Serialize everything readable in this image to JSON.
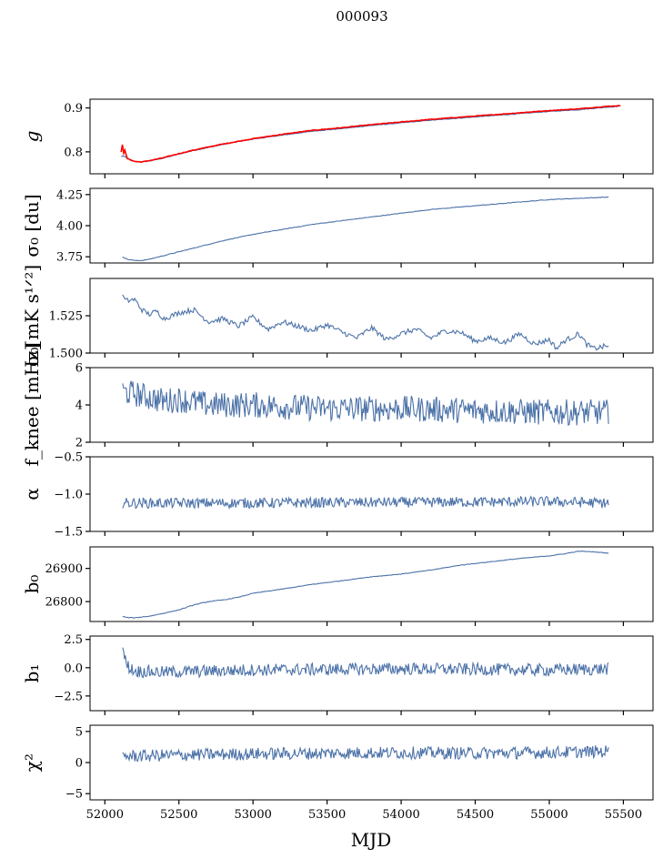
{
  "figure": {
    "title": "000093",
    "xlabel": "MJD"
  },
  "colors": {
    "series_blue": "#4c72a8",
    "series_red": "#ff0000"
  },
  "chart_data": [
    {
      "id": "g",
      "type": "line",
      "ylabel_text": "g",
      "ylabel_italic": true,
      "ylim": [
        0.75,
        0.92
      ],
      "yticks": [
        0.8,
        0.9
      ],
      "ytick_labels": [
        "0.8",
        "0.9"
      ],
      "xlim": [
        51900,
        55700
      ],
      "series": [
        {
          "color": "#4c72a8",
          "x": [
            52110,
            52130,
            52150,
            52200,
            52250,
            52300,
            52400,
            52500,
            52600,
            52700,
            52800,
            52900,
            53000,
            53200,
            53400,
            53600,
            53800,
            54000,
            54200,
            54400,
            54600,
            54800,
            55000,
            55200,
            55400,
            55480
          ],
          "y": [
            0.79,
            0.79,
            0.785,
            0.778,
            0.777,
            0.779,
            0.786,
            0.795,
            0.803,
            0.81,
            0.817,
            0.823,
            0.829,
            0.838,
            0.847,
            0.853,
            0.86,
            0.866,
            0.872,
            0.877,
            0.882,
            0.887,
            0.892,
            0.896,
            0.902,
            0.904
          ]
        },
        {
          "color": "#ff0000",
          "x": [
            52110,
            52120,
            52125,
            52130,
            52150,
            52200,
            52250,
            52300,
            52400,
            52500,
            52600,
            52700,
            52800,
            52900,
            53000,
            53200,
            53400,
            53600,
            53800,
            54000,
            54200,
            54400,
            54600,
            54800,
            55000,
            55200,
            55400,
            55480
          ],
          "y": [
            0.8,
            0.82,
            0.79,
            0.81,
            0.785,
            0.778,
            0.777,
            0.78,
            0.787,
            0.796,
            0.804,
            0.811,
            0.818,
            0.824,
            0.83,
            0.84,
            0.849,
            0.855,
            0.862,
            0.868,
            0.874,
            0.879,
            0.884,
            0.889,
            0.894,
            0.898,
            0.904,
            0.905
          ]
        }
      ]
    },
    {
      "id": "sigma0_du",
      "type": "line",
      "ylabel_text": "σ₀ [du]",
      "ylim": [
        3.7,
        4.3
      ],
      "yticks": [
        3.75,
        4.0,
        4.25
      ],
      "ytick_labels": [
        "3.75",
        "4.00",
        "4.25"
      ],
      "xlim": [
        51900,
        55700
      ],
      "series": [
        {
          "color": "#4c72a8",
          "x": [
            52120,
            52150,
            52200,
            52250,
            52300,
            52400,
            52500,
            52600,
            52700,
            52800,
            53000,
            53200,
            53400,
            53600,
            53800,
            54000,
            54200,
            54400,
            54600,
            54800,
            55000,
            55200,
            55400
          ],
          "y": [
            3.75,
            3.73,
            3.72,
            3.72,
            3.73,
            3.76,
            3.79,
            3.82,
            3.85,
            3.88,
            3.93,
            3.97,
            4.01,
            4.04,
            4.07,
            4.1,
            4.13,
            4.15,
            4.17,
            4.19,
            4.21,
            4.22,
            4.23
          ]
        }
      ]
    },
    {
      "id": "sigma0_mk",
      "type": "line",
      "ylabel_text": "σ₀[mK s¹ᐟ²]",
      "ylim": [
        1.5,
        1.55
      ],
      "yticks": [
        1.5,
        1.525
      ],
      "ytick_labels": [
        "1.500",
        "1.525"
      ],
      "xlim": [
        51900,
        55700
      ],
      "series": [
        {
          "color": "#4c72a8",
          "x": [
            52120,
            52130,
            52150,
            52200,
            52250,
            52300,
            52350,
            52400,
            52500,
            52600,
            52700,
            52800,
            52900,
            53000,
            53100,
            53200,
            53300,
            53400,
            53500,
            53600,
            53700,
            53800,
            53900,
            54000,
            54100,
            54200,
            54300,
            54400,
            54500,
            54600,
            54700,
            54800,
            54900,
            55000,
            55050,
            55100,
            55200,
            55250,
            55300,
            55400
          ],
          "y": [
            1.54,
            1.536,
            1.535,
            1.536,
            1.529,
            1.526,
            1.528,
            1.523,
            1.527,
            1.529,
            1.521,
            1.523,
            1.518,
            1.524,
            1.516,
            1.521,
            1.518,
            1.515,
            1.519,
            1.514,
            1.51,
            1.517,
            1.509,
            1.513,
            1.516,
            1.51,
            1.515,
            1.514,
            1.508,
            1.51,
            1.507,
            1.513,
            1.506,
            1.509,
            1.503,
            1.508,
            1.513,
            1.506,
            1.503,
            1.505
          ]
        }
      ]
    },
    {
      "id": "fknee",
      "type": "line",
      "ylabel_text": "f_knee [mHz]",
      "ylim": [
        2,
        6
      ],
      "yticks": [
        2,
        4,
        6
      ],
      "ytick_labels": [
        "2",
        "4",
        "6"
      ],
      "xlim": [
        51900,
        55700
      ],
      "series": [
        {
          "color": "#4c72a8",
          "noisy": true,
          "noise": 0.7,
          "x": [
            52120,
            52200,
            52300,
            52400,
            52500,
            52700,
            53000,
            53500,
            54000,
            54500,
            55000,
            55400
          ],
          "y": [
            4.7,
            4.6,
            4.4,
            4.2,
            4.3,
            4.0,
            4.0,
            3.8,
            3.8,
            3.7,
            3.6,
            3.6
          ]
        }
      ]
    },
    {
      "id": "alpha",
      "type": "line",
      "ylabel_text": "α",
      "ylim": [
        -1.5,
        -0.5
      ],
      "yticks": [
        -1.5,
        -1.0,
        -0.5
      ],
      "ytick_labels": [
        "−1.5",
        "−1.0",
        "−0.5"
      ],
      "xlim": [
        51900,
        55700
      ],
      "series": [
        {
          "color": "#4c72a8",
          "noisy": true,
          "noise": 0.07,
          "x": [
            52120,
            53000,
            54000,
            55000,
            55400
          ],
          "y": [
            -1.12,
            -1.12,
            -1.11,
            -1.1,
            -1.12
          ]
        }
      ]
    },
    {
      "id": "b0",
      "type": "line",
      "ylabel_text": "b₀",
      "ylim": [
        26740,
        26965
      ],
      "yticks": [
        26800,
        26900
      ],
      "ytick_labels": [
        "26800",
        "26900"
      ],
      "xlim": [
        51900,
        55700
      ],
      "series": [
        {
          "color": "#4c72a8",
          "x": [
            52120,
            52150,
            52200,
            52300,
            52400,
            52500,
            52600,
            52700,
            52800,
            52900,
            53000,
            53200,
            53400,
            53600,
            53800,
            54000,
            54200,
            54400,
            54600,
            54800,
            55000,
            55100,
            55200,
            55300,
            55400
          ],
          "y": [
            26755,
            26752,
            26751,
            26756,
            26765,
            26775,
            26790,
            26800,
            26805,
            26813,
            26825,
            26838,
            26852,
            26863,
            26875,
            26883,
            26895,
            26910,
            26920,
            26930,
            26938,
            26944,
            26952,
            26950,
            26946
          ]
        }
      ]
    },
    {
      "id": "b1",
      "type": "line",
      "ylabel_text": "b₁",
      "ylim": [
        -3.8,
        2.8
      ],
      "yticks": [
        -2.5,
        0.0,
        2.5
      ],
      "ytick_labels": [
        "−2.5",
        "0.0",
        "2.5"
      ],
      "xlim": [
        51900,
        55700
      ],
      "series": [
        {
          "color": "#4c72a8",
          "noisy": true,
          "noise": 0.55,
          "x": [
            52120,
            52130,
            52150,
            52200,
            52400,
            53000,
            54000,
            55000,
            55400
          ],
          "y": [
            2.2,
            1.0,
            0.2,
            -0.3,
            -0.4,
            -0.2,
            -0.1,
            -0.2,
            -0.1
          ]
        }
      ]
    },
    {
      "id": "chi2",
      "type": "line",
      "ylabel_text": "χ²",
      "ylim": [
        -6,
        6
      ],
      "yticks": [
        -5,
        0,
        5
      ],
      "ytick_labels": [
        "−5",
        "0",
        "5"
      ],
      "xlim": [
        51900,
        55700
      ],
      "series": [
        {
          "color": "#4c72a8",
          "noisy": true,
          "noise": 1.0,
          "x": [
            52120,
            52500,
            53000,
            53500,
            54000,
            54500,
            55000,
            55400
          ],
          "y": [
            1.0,
            1.2,
            1.4,
            1.5,
            1.6,
            1.5,
            1.6,
            1.8
          ]
        }
      ]
    }
  ],
  "x_axis": {
    "ticks": [
      52000,
      52500,
      53000,
      53500,
      54000,
      54500,
      55000,
      55500
    ],
    "tick_labels": [
      "52000",
      "52500",
      "53000",
      "53500",
      "54000",
      "54500",
      "55000",
      "55500"
    ]
  }
}
